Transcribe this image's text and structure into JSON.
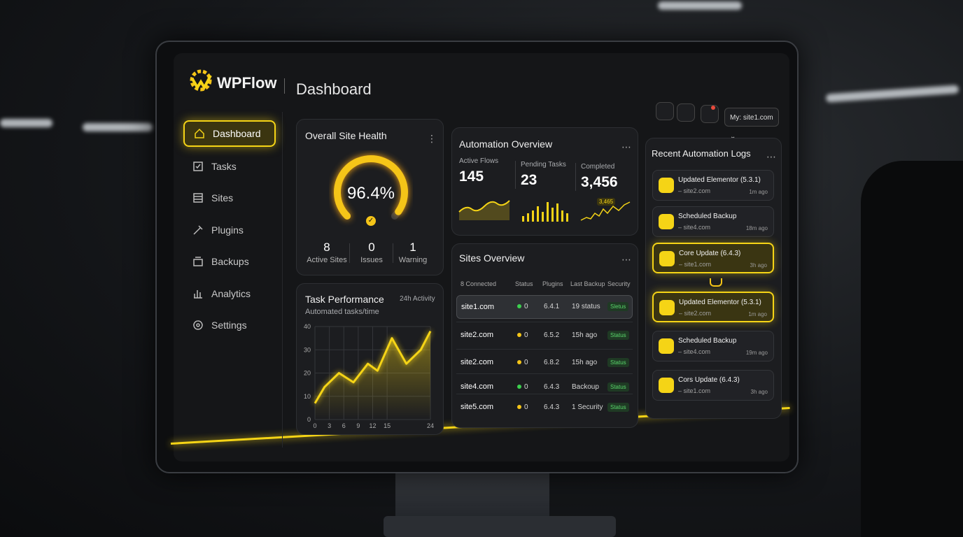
{
  "header": {
    "logo": "WPFlow",
    "page_title": "Dashboard",
    "site_selector": "My: site1.com"
  },
  "sidebar": {
    "items": [
      "Dashboard",
      "Tasks",
      "Sites",
      "Plugins",
      "Backups",
      "Analytics",
      "Settings"
    ],
    "active": 0
  },
  "site_health": {
    "title": "Overall Site Health",
    "value": 96.4,
    "value_label": "96.4%",
    "stats": [
      {
        "value": "8",
        "label": "Active Sites"
      },
      {
        "value": "0",
        "label": "Issues"
      },
      {
        "value": "1",
        "label": "Warning"
      }
    ]
  },
  "task_performance": {
    "title": "Task Performance",
    "subtitle": "Automated tasks/time",
    "badge": "24h Activity",
    "x": [
      0,
      2,
      5,
      8,
      11,
      13,
      16,
      19,
      22,
      24
    ],
    "values": [
      7,
      14,
      20,
      16,
      24,
      21,
      35,
      24,
      30,
      38
    ],
    "xlim": [
      0,
      24
    ],
    "ylim": [
      0,
      40
    ],
    "xticks": [
      0,
      3,
      6,
      9,
      12,
      15,
      24
    ],
    "yticks": [
      0,
      10,
      20,
      30,
      40
    ],
    "color": "#f5d416",
    "grid": true
  },
  "automation_overview": {
    "title": "Automation Overview",
    "metrics": [
      {
        "label": "Active Flows",
        "value": "145"
      },
      {
        "label": "Pending Tasks",
        "value": "23"
      },
      {
        "label": "Completed",
        "value": "3,456"
      }
    ],
    "sparkline_label": "3,465"
  },
  "sites_overview": {
    "title": "Sites Overview",
    "columns": [
      "8 Connected",
      "Status",
      "Plugins",
      "Last Backup",
      "Security"
    ],
    "rows": [
      [
        "site1.com",
        "0",
        "6.4.1",
        "19 status",
        "Sletus"
      ],
      [
        "site2.com",
        "0",
        "6.5.2",
        "15h ago",
        "Status"
      ],
      [
        "site2.com",
        "0",
        "6.8.2",
        "15h ago",
        "Status"
      ],
      [
        "site4.com",
        "0",
        "6.4.3",
        "Backoup",
        "Status"
      ],
      [
        "site5.com",
        "0",
        "6.4.3",
        "1 Security",
        "Status"
      ]
    ],
    "status_colors": [
      "#3ccf4e",
      "#f5c518",
      "#f5c518",
      "#3ccf4e",
      "#f5c518"
    ],
    "selected_row": 0
  },
  "recent_logs": {
    "title": "Recent Automation Logs",
    "items": [
      {
        "title": "Updated Elementor (5.3.1)",
        "site": "– site2.com",
        "time": "1m ago",
        "highlighted": false
      },
      {
        "title": "Scheduled Backup",
        "site": "– site4.com",
        "time": "18m ago",
        "highlighted": false
      },
      {
        "title": "Core Update (6.4.3)",
        "site": "– site1.com",
        "time": "3h ago",
        "highlighted": true
      },
      {
        "title": "Updated Elementor (5.3.1)",
        "site": "– site2.com",
        "time": "1m ago",
        "highlighted": true
      },
      {
        "title": "Scheduled Backup",
        "site": "– site4.com",
        "time": "19m ago",
        "highlighted": false
      },
      {
        "title": "Cors Update (6.4.3)",
        "site": "– site1.com",
        "time": "3h ago",
        "highlighted": false
      }
    ]
  }
}
